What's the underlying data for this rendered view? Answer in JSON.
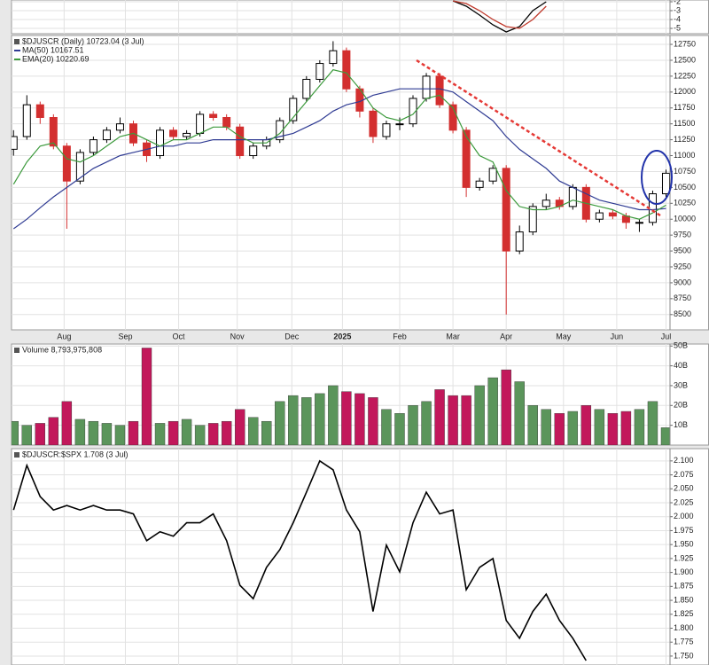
{
  "chart_data": [
    {
      "type": "line",
      "ylim": [
        -5.6,
        -1.8
      ],
      "yticks": [
        -2,
        -3,
        -4,
        -5
      ],
      "series": [
        {
          "color": "#000000",
          "x": [
            33,
            34,
            35,
            36,
            37,
            38,
            39,
            40
          ],
          "values": [
            -1.9,
            -2.5,
            -3.5,
            -4.6,
            -5.4,
            -4.8,
            -3.0,
            -2.0
          ]
        },
        {
          "color": "#c0392b",
          "x": [
            33,
            34,
            35,
            36,
            37,
            38,
            39,
            40
          ],
          "values": [
            -1.9,
            -2.2,
            -3.0,
            -4.0,
            -4.8,
            -5.0,
            -4.0,
            -2.5
          ]
        }
      ]
    },
    {
      "type": "candlestick",
      "title": "$DJUSCR (Daily) 10723.04 (3 Jul)",
      "up_color": "#000000",
      "down_color": "#d32f2f",
      "xlim": [
        -0.15,
        49.3
      ],
      "ylim": [
        8260,
        12890
      ],
      "yticks": [
        8500,
        8750,
        9000,
        9250,
        9500,
        9750,
        10000,
        10250,
        10500,
        10750,
        11000,
        11250,
        11500,
        11750,
        12000,
        12250,
        12500,
        12750
      ],
      "xticks": [
        {
          "value": 3.8,
          "label": "Aug"
        },
        {
          "value": 8.4,
          "label": "Sep"
        },
        {
          "value": 12.4,
          "label": "Oct"
        },
        {
          "value": 16.8,
          "label": "Nov"
        },
        {
          "value": 20.9,
          "label": "Dec"
        },
        {
          "value": 24.7,
          "label": "2025"
        },
        {
          "value": 29,
          "label": "Feb"
        },
        {
          "value": 33,
          "label": "Mar"
        },
        {
          "value": 37,
          "label": "Apr"
        },
        {
          "value": 41.3,
          "label": "May"
        },
        {
          "value": 45.3,
          "label": "Jun"
        },
        {
          "value": 49,
          "label": "Jul"
        }
      ],
      "open": [
        11100,
        11300,
        11800,
        11600,
        11150,
        10600,
        11050,
        11250,
        11400,
        11500,
        11200,
        11000,
        11400,
        11300,
        11350,
        11650,
        11600,
        11450,
        11000,
        11150,
        11250,
        11550,
        11900,
        12200,
        12450,
        12650,
        12050,
        11700,
        11300,
        11500,
        11500,
        11900,
        12250,
        11800,
        11400,
        10500,
        10600,
        10800,
        9500,
        9800,
        10200,
        10300,
        10200,
        10500,
        10000,
        10100,
        10050,
        9950,
        9950,
        10400
      ],
      "high": [
        11400,
        11950,
        11850,
        11650,
        11200,
        11100,
        11300,
        11450,
        11600,
        11550,
        11250,
        11450,
        11450,
        11400,
        11700,
        11700,
        11650,
        11500,
        11200,
        11300,
        11600,
        11950,
        12250,
        12500,
        12800,
        12700,
        12100,
        11750,
        11550,
        11600,
        11950,
        12300,
        12300,
        11850,
        11450,
        10650,
        10850,
        10850,
        9900,
        10250,
        10400,
        10350,
        10550,
        10550,
        10150,
        10150,
        10100,
        10000,
        10450,
        10780
      ],
      "low": [
        11000,
        11250,
        11500,
        11100,
        9850,
        10550,
        11000,
        11200,
        11350,
        11150,
        10900,
        10950,
        11250,
        11250,
        11300,
        11550,
        11400,
        10950,
        10950,
        11100,
        11200,
        11500,
        11850,
        12150,
        12400,
        12000,
        11600,
        11200,
        11250,
        11400,
        11450,
        11850,
        11750,
        11350,
        10350,
        10450,
        10550,
        8500,
        9450,
        9750,
        10150,
        10150,
        10150,
        9950,
        9950,
        10000,
        9850,
        9800,
        9900,
        10350
      ],
      "close": [
        11300,
        11800,
        11600,
        11150,
        10600,
        11050,
        11250,
        11400,
        11500,
        11200,
        11000,
        11400,
        11300,
        11350,
        11650,
        11600,
        11450,
        11000,
        11150,
        11250,
        11550,
        11900,
        12200,
        12450,
        12650,
        12050,
        11700,
        11300,
        11500,
        11500,
        11900,
        12250,
        11800,
        11400,
        10500,
        10600,
        10800,
        9500,
        9800,
        10200,
        10300,
        10200,
        10500,
        10000,
        10100,
        10050,
        9950,
        9950,
        10400,
        10723.04
      ],
      "series": [
        {
          "name": "MA(50) 10167.51",
          "color": "#2f3b93",
          "values": [
            9850,
            10000,
            10180,
            10350,
            10500,
            10650,
            10800,
            10900,
            11000,
            11050,
            11100,
            11150,
            11150,
            11200,
            11200,
            11250,
            11250,
            11250,
            11250,
            11250,
            11300,
            11350,
            11450,
            11550,
            11700,
            11800,
            11850,
            11950,
            12000,
            12050,
            12050,
            12050,
            12050,
            12000,
            11850,
            11700,
            11550,
            11300,
            11100,
            10950,
            10800,
            10600,
            10500,
            10400,
            10300,
            10250,
            10200,
            10150,
            10150,
            10167.51
          ]
        },
        {
          "name": "EMA(20) 10220.69",
          "color": "#3c9a3c",
          "values": [
            10550,
            10900,
            11150,
            11200,
            10950,
            10900,
            11000,
            11150,
            11300,
            11350,
            11250,
            11150,
            11250,
            11250,
            11350,
            11450,
            11450,
            11300,
            11200,
            11200,
            11350,
            11600,
            11850,
            12100,
            12350,
            12300,
            12050,
            11750,
            11600,
            11550,
            11650,
            11900,
            11950,
            11750,
            11300,
            11000,
            10900,
            10450,
            10200,
            10150,
            10150,
            10200,
            10300,
            10250,
            10200,
            10150,
            10050,
            10000,
            10100,
            10220.69
          ]
        }
      ]
    },
    {
      "type": "bar",
      "title": "Volume 8,793,975,808",
      "up_color": "#5b955b",
      "down_color": "#c2185b",
      "ylim": [
        0,
        51
      ],
      "yticks": [
        {
          "value": 10,
          "label": "10B"
        },
        {
          "value": 20,
          "label": "20B"
        },
        {
          "value": 30,
          "label": "30B"
        },
        {
          "value": 40,
          "label": "40B"
        },
        {
          "value": 50,
          "label": "50B"
        }
      ],
      "values": [
        12,
        10,
        11,
        14,
        22,
        13,
        12,
        11,
        10,
        12,
        49,
        11,
        12,
        13,
        10,
        11,
        12,
        18,
        14,
        12,
        22,
        25,
        24,
        26,
        30,
        27,
        26,
        24,
        18,
        16,
        20,
        22,
        28,
        25,
        25,
        30,
        34,
        38,
        32,
        20,
        18,
        16,
        17,
        20,
        18,
        16,
        17,
        18,
        22,
        8.79
      ]
    },
    {
      "type": "line",
      "title": "$DJUSCR:$SPX 1.708 (3 Jul)",
      "color": "#000000",
      "ylim": [
        1.734,
        2.122
      ],
      "yticks": [
        {
          "value": 1.75,
          "label": "1.750"
        },
        {
          "value": 1.775,
          "label": "1.775"
        },
        {
          "value": 1.8,
          "label": "1.800"
        },
        {
          "value": 1.825,
          "label": "1.825"
        },
        {
          "value": 1.85,
          "label": "1.850"
        },
        {
          "value": 1.875,
          "label": "1.875"
        },
        {
          "value": 1.9,
          "label": "1.900"
        },
        {
          "value": 1.925,
          "label": "1.925"
        },
        {
          "value": 1.95,
          "label": "1.950"
        },
        {
          "value": 1.975,
          "label": "1.975"
        },
        {
          "value": 2.0,
          "label": "2.000"
        },
        {
          "value": 2.025,
          "label": "2.025"
        },
        {
          "value": 2.05,
          "label": "2.050"
        },
        {
          "value": 2.075,
          "label": "2.075"
        },
        {
          "value": 2.1,
          "label": "2.100"
        }
      ],
      "values": [
        2.012,
        2.092,
        2.036,
        2.012,
        2.02,
        2.012,
        2.02,
        2.012,
        2.012,
        2.005,
        1.957,
        1.973,
        1.965,
        1.989,
        1.989,
        2.005,
        1.957,
        1.877,
        1.853,
        1.909,
        1.941,
        1.989,
        2.044,
        2.1,
        2.084,
        2.012,
        1.973,
        1.83,
        1.949,
        1.901,
        1.989,
        2.044,
        2.005,
        2.012,
        1.869,
        1.909,
        1.925,
        1.814,
        1.782,
        1.83,
        1.861,
        1.814,
        1.782,
        1.742,
        null,
        null,
        null,
        null,
        null,
        null
      ]
    }
  ]
}
